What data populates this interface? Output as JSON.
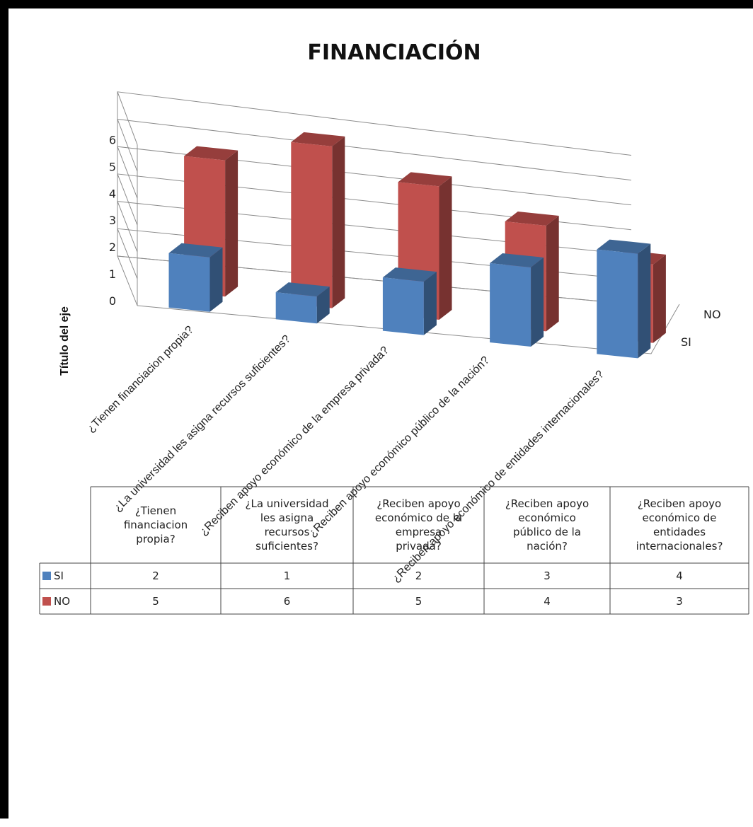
{
  "chart_data": {
    "type": "bar",
    "title": "FINANCIACIÓN",
    "ylabel": "Título del eje",
    "ylim": [
      0,
      6
    ],
    "yticks": [
      0,
      1,
      2,
      3,
      4,
      5,
      6
    ],
    "grid": true,
    "categories": [
      "¿Tienen financiacion propia?",
      "¿La universidad les asigna recursos suficientes?",
      "¿Reciben apoyo económico de la empresa privada?",
      "¿Reciben apoyo económico público de la nación?",
      "¿Reciben apoyo económico  de entidades internacionales?"
    ],
    "table_headers": [
      [
        "¿Tienen",
        "financiacion",
        "propia?"
      ],
      [
        "¿La universidad",
        "les asigna",
        "recursos",
        "suficientes?"
      ],
      [
        "¿Reciben apoyo",
        "económico de la",
        "empresa",
        "privada?"
      ],
      [
        "¿Reciben apoyo",
        "económico",
        "público de la",
        "nación?"
      ],
      [
        "¿Reciben apoyo",
        "económico  de",
        "entidades",
        "internacionales?"
      ]
    ],
    "depth_labels": [
      "NO",
      "SI"
    ],
    "series": [
      {
        "name": "SI",
        "values": [
          2,
          1,
          2,
          3,
          4
        ],
        "color": "#4f81bd"
      },
      {
        "name": "NO",
        "values": [
          5,
          6,
          5,
          4,
          3
        ],
        "color": "#c0504d"
      }
    ]
  }
}
